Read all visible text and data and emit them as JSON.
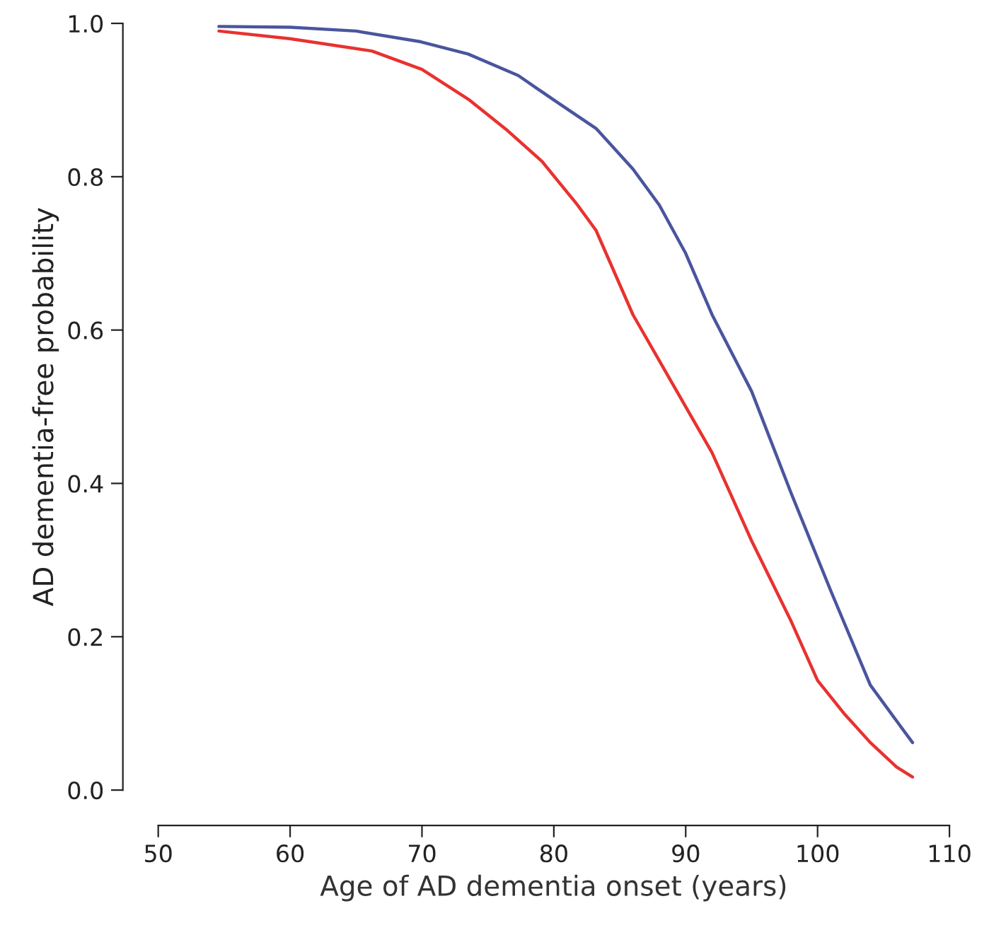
{
  "chart_data": {
    "type": "line",
    "xlabel": "Age of AD dementia onset (years)",
    "ylabel": "AD dementia-free probability",
    "series": [
      {
        "color": "#e8322f",
        "x": [
          54.6,
          60,
          66.2,
          70,
          73.6,
          76.5,
          79.1,
          81.8,
          83.2,
          86,
          89,
          92,
          95,
          98,
          100,
          102,
          104,
          106,
          107.2
        ],
        "values": [
          0.99,
          0.98,
          0.964,
          0.94,
          0.9,
          0.86,
          0.82,
          0.763,
          0.73,
          0.62,
          0.53,
          0.44,
          0.325,
          0.22,
          0.143,
          0.1,
          0.062,
          0.03,
          0.017
        ]
      },
      {
        "color": "#4a559e",
        "x": [
          54.6,
          60,
          65,
          69.9,
          73.5,
          77.3,
          80,
          83.2,
          86,
          88,
          90,
          92,
          95,
          98,
          101,
          104,
          106,
          107.2
        ],
        "values": [
          0.996,
          0.995,
          0.99,
          0.976,
          0.96,
          0.932,
          0.9,
          0.863,
          0.81,
          0.763,
          0.7,
          0.62,
          0.52,
          0.387,
          0.26,
          0.137,
          0.09,
          0.062
        ]
      }
    ],
    "xlim": [
      50,
      110
    ],
    "xticks": [
      50,
      60,
      70,
      80,
      90,
      100,
      110
    ],
    "ylim": [
      0,
      1
    ],
    "yticks": [
      {
        "value": 0,
        "label": "0.0"
      },
      {
        "value": 0.2,
        "label": "0.2"
      },
      {
        "value": 0.4,
        "label": "0.4"
      },
      {
        "value": 0.6,
        "label": "0.6"
      },
      {
        "value": 0.8,
        "label": "0.8"
      },
      {
        "value": 1,
        "label": "1.0"
      }
    ],
    "grid": false,
    "legend": false,
    "marker": "none",
    "line_style": "solid"
  }
}
